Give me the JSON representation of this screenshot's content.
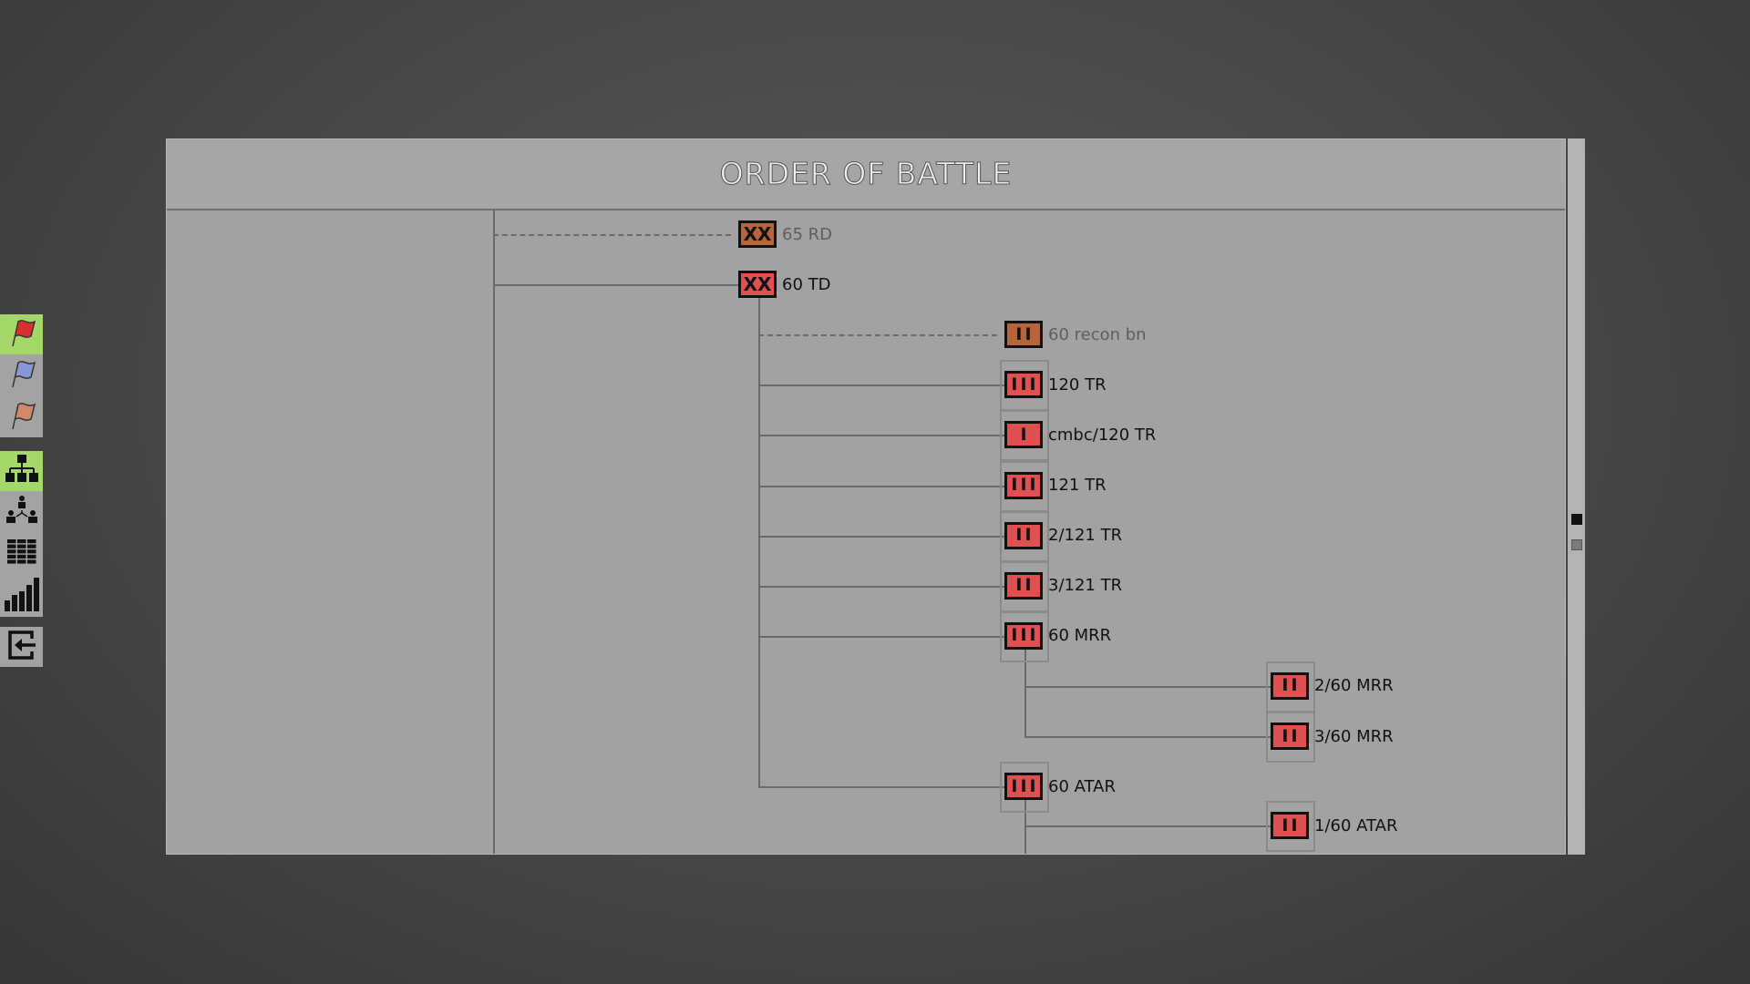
{
  "title": "ORDER OF BATTLE",
  "colors": {
    "hostile": "#e05050",
    "hostile_detached": "#b8643a",
    "sidebar_active": "#a6d76a",
    "panel": "#a2a2a2"
  },
  "sidebar": [
    {
      "icon": "red-flag-icon",
      "active": true
    },
    {
      "icon": "blue-flag-icon",
      "active": false
    },
    {
      "icon": "orange-flag-icon",
      "active": false
    },
    {
      "icon": "org-chart-icon",
      "active": true
    },
    {
      "icon": "personnel-hierarchy-icon",
      "active": false
    },
    {
      "icon": "table-grid-icon",
      "active": false
    },
    {
      "icon": "bar-chart-icon",
      "active": false
    },
    {
      "icon": "exit-icon",
      "active": false
    }
  ],
  "units": [
    {
      "label": "65 RD",
      "echelon": "XX",
      "level": 0,
      "detached": true
    },
    {
      "label": "60 TD",
      "echelon": "XX",
      "level": 0,
      "detached": false
    },
    {
      "label": "60 recon bn",
      "echelon": "II",
      "level": 1,
      "detached": true
    },
    {
      "label": "120 TR",
      "echelon": "III",
      "level": 1,
      "detached": false
    },
    {
      "label": "cmbc/120 TR",
      "echelon": "I",
      "level": 1,
      "detached": false
    },
    {
      "label": "121 TR",
      "echelon": "III",
      "level": 1,
      "detached": false
    },
    {
      "label": "2/121 TR",
      "echelon": "II",
      "level": 1,
      "detached": false
    },
    {
      "label": "3/121 TR",
      "echelon": "II",
      "level": 1,
      "detached": false
    },
    {
      "label": "60 MRR",
      "echelon": "III",
      "level": 1,
      "detached": false
    },
    {
      "label": "2/60 MRR",
      "echelon": "II",
      "level": 2,
      "detached": false
    },
    {
      "label": "3/60 MRR",
      "echelon": "II",
      "level": 2,
      "detached": false
    },
    {
      "label": "60 ATAR",
      "echelon": "III",
      "level": 1,
      "detached": false
    },
    {
      "label": "1/60 ATAR",
      "echelon": "II",
      "level": 2,
      "detached": false
    }
  ]
}
